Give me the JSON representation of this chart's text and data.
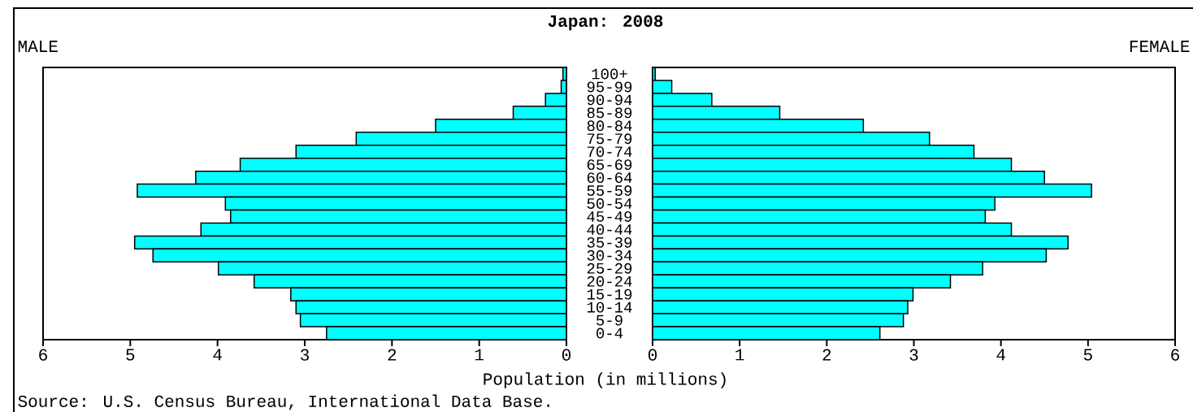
{
  "chart_data": [
    {
      "type": "bar",
      "orientation": "horizontal",
      "title": "Japan: 2008",
      "subtitle": "MALE",
      "xlabel": "Population (in millions)",
      "annotations": [
        "Source: U.S. Census Bureau, International Data Base."
      ],
      "color": "#00ffff",
      "xlim": [
        6,
        0
      ],
      "xticks": [
        6,
        5,
        4,
        3,
        2,
        1,
        0
      ],
      "categories": [
        "100+",
        "95-99",
        "90-94",
        "85-89",
        "80-84",
        "75-79",
        "70-74",
        "65-69",
        "60-64",
        "55-59",
        "50-54",
        "45-49",
        "40-44",
        "35-39",
        "30-34",
        "25-29",
        "20-24",
        "15-19",
        "10-14",
        "5-9",
        "0-4"
      ],
      "values": [
        0.04,
        0.06,
        0.24,
        0.61,
        1.5,
        2.41,
        3.1,
        3.74,
        4.25,
        4.92,
        3.91,
        3.85,
        4.19,
        4.95,
        4.74,
        3.99,
        3.58,
        3.16,
        3.1,
        3.05,
        2.75
      ]
    },
    {
      "type": "bar",
      "orientation": "horizontal",
      "title": "FEMALE",
      "tick_labels": "x",
      "color": "#00ffff",
      "xlim": [
        0,
        6
      ],
      "xticks": [
        0,
        1,
        2,
        3,
        4,
        5,
        6
      ],
      "categories": [
        null,
        null,
        null,
        null,
        null,
        null,
        null,
        null,
        null,
        null,
        null,
        null,
        null,
        null,
        null,
        null,
        null,
        null,
        null,
        null,
        null
      ],
      "values": [
        0.03,
        0.22,
        0.68,
        1.46,
        2.42,
        3.18,
        3.69,
        4.12,
        4.5,
        5.04,
        3.93,
        3.82,
        4.12,
        4.77,
        4.52,
        3.79,
        3.42,
        2.99,
        2.93,
        2.88,
        2.61
      ]
    }
  ]
}
